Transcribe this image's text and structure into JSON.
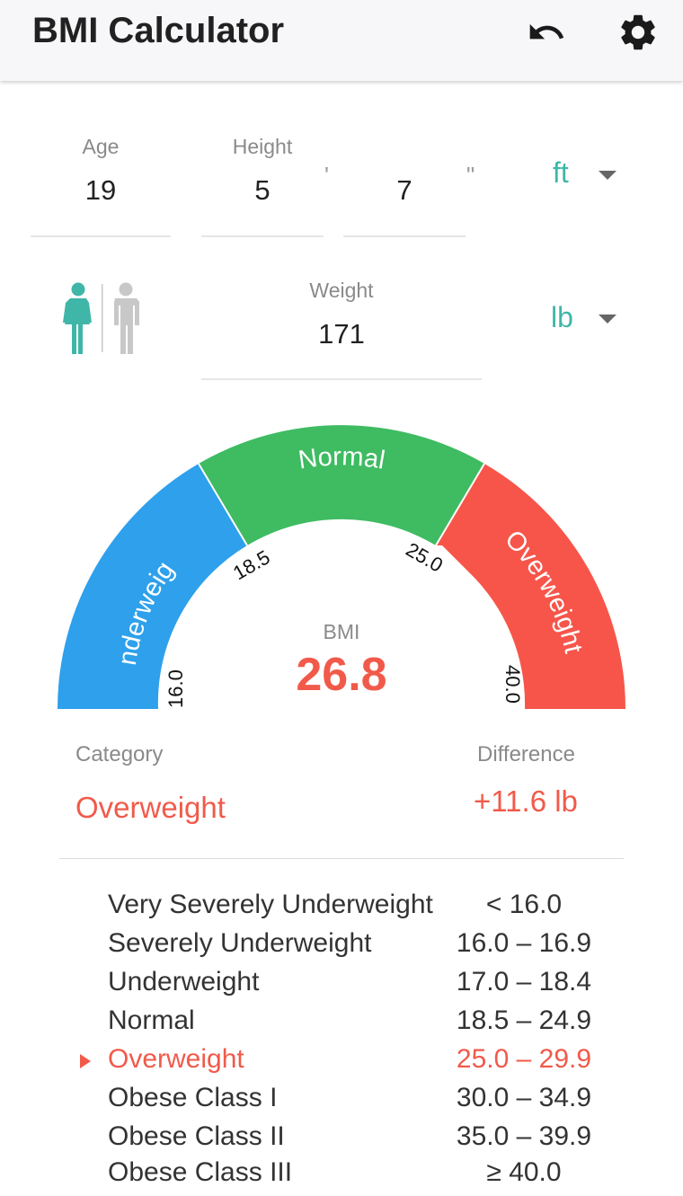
{
  "app": {
    "title": "BMI Calculator"
  },
  "icons": {
    "undo": "undo-icon",
    "settings": "gear-icon",
    "female": "female-icon",
    "male": "male-icon"
  },
  "inputs": {
    "age": {
      "label": "Age",
      "value": "19"
    },
    "height": {
      "label": "Height",
      "feet": "5",
      "inches": "7",
      "feet_mark": "'",
      "inch_mark": "\""
    },
    "height_unit": "ft",
    "weight": {
      "label": "Weight",
      "value": "171"
    },
    "weight_unit": "lb"
  },
  "gender": {
    "selected": "female",
    "colors": {
      "selected": "#3fb6a8",
      "unselected": "#c8c8c8"
    }
  },
  "gauge": {
    "min": 16.0,
    "max": 40.0,
    "segments": [
      {
        "label": "Underweight",
        "from": 16.0,
        "to": 18.5,
        "color": "#2ea0ec"
      },
      {
        "label": "Normal",
        "from": 18.5,
        "to": 25.0,
        "color": "#3fbb62"
      },
      {
        "label": "Overweight",
        "from": 25.0,
        "to": 40.0,
        "color": "#f7554a"
      }
    ],
    "ticks": [
      "16.0",
      "18.5",
      "25.0",
      "40.0"
    ],
    "value": 26.8
  },
  "result": {
    "bmi_label": "BMI",
    "bmi_value": "26.8",
    "category_label": "Category",
    "category_value": "Overweight",
    "difference_label": "Difference",
    "difference_value": "+11.6 lb",
    "accent_color": "#f15a4a"
  },
  "categories": [
    {
      "name": "Very Severely Underweight",
      "range": "< 16.0",
      "active": false
    },
    {
      "name": "Severely Underweight",
      "range": "16.0 – 16.9",
      "active": false
    },
    {
      "name": "Underweight",
      "range": "17.0 – 18.4",
      "active": false
    },
    {
      "name": "Normal",
      "range": "18.5 – 24.9",
      "active": false
    },
    {
      "name": "Overweight",
      "range": "25.0 – 29.9",
      "active": true
    },
    {
      "name": "Obese Class I",
      "range": "30.0 – 34.9",
      "active": false
    },
    {
      "name": "Obese Class II",
      "range": "35.0 – 39.9",
      "active": false
    },
    {
      "name": "Obese Class III",
      "range": "≥ 40.0",
      "active": false
    }
  ]
}
